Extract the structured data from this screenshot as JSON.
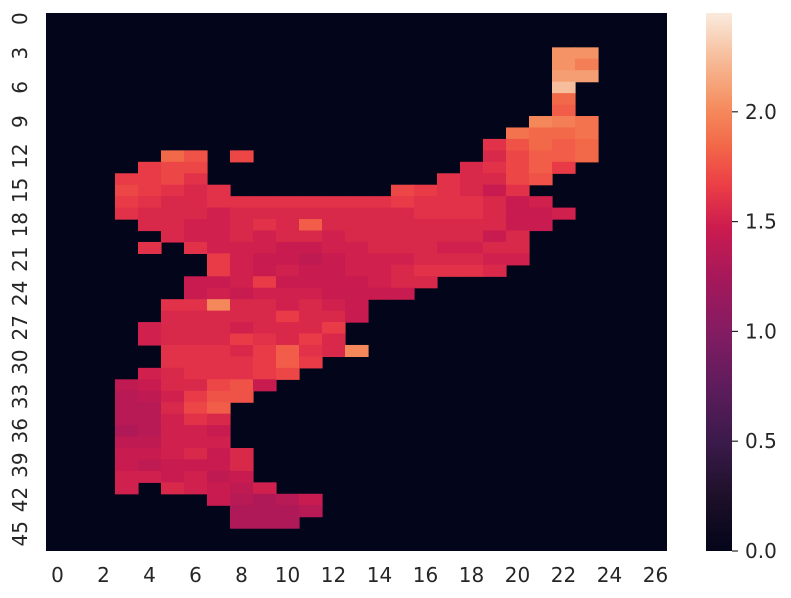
{
  "chart_data": {
    "type": "heatmap",
    "title": "",
    "xlabel": "",
    "ylabel": "",
    "n_cols": 27,
    "n_rows": 47,
    "x_tick_labels": [
      "0",
      "2",
      "4",
      "6",
      "8",
      "10",
      "12",
      "14",
      "16",
      "18",
      "20",
      "22",
      "24",
      "26"
    ],
    "y_tick_labels": [
      "0",
      "3",
      "6",
      "9",
      "12",
      "15",
      "18",
      "21",
      "24",
      "27",
      "30",
      "33",
      "36",
      "39",
      "42",
      "45"
    ],
    "colorbar": {
      "range": [
        0.0,
        2.45
      ],
      "ticks": [
        "0.0",
        "0.5",
        "1.0",
        "1.5",
        "2.0"
      ],
      "colormap": "rocket"
    },
    "background_value": 0.0,
    "cells_note": "rows listed as [row_index, first_col, [values for consecutive columns]]; unlisted cells = 0.0",
    "cells": [
      [
        3,
        22,
        [
          2.05,
          2.05
        ]
      ],
      [
        4,
        22,
        [
          2.05,
          1.95
        ]
      ],
      [
        5,
        22,
        [
          2.1,
          2.1
        ]
      ],
      [
        6,
        22,
        [
          2.25
        ]
      ],
      [
        7,
        22,
        [
          1.85
        ]
      ],
      [
        8,
        22,
        [
          1.8
        ]
      ],
      [
        9,
        21,
        [
          2.0,
          1.95,
          1.9
        ]
      ],
      [
        10,
        20,
        [
          1.9,
          1.85,
          1.85,
          1.9
        ]
      ],
      [
        11,
        19,
        [
          1.6,
          1.75,
          1.85,
          1.8,
          1.85
        ]
      ],
      [
        12,
        5,
        [
          1.85,
          1.75
        ]
      ],
      [
        12,
        7,
        [
          0.0,
          1.7
        ]
      ],
      [
        12,
        19,
        [
          1.55,
          1.7,
          1.8,
          1.8,
          1.85
        ]
      ],
      [
        13,
        4,
        [
          1.65,
          1.7,
          1.7
        ]
      ],
      [
        13,
        18,
        [
          1.55,
          1.6,
          1.7,
          1.8,
          1.65
        ]
      ],
      [
        14,
        3,
        [
          1.65,
          1.65,
          1.7,
          1.6
        ]
      ],
      [
        14,
        17,
        [
          1.6,
          1.55,
          1.55,
          1.7,
          1.75
        ]
      ],
      [
        15,
        3,
        [
          1.7,
          1.65,
          1.6,
          1.55,
          1.6
        ]
      ],
      [
        15,
        15,
        [
          1.7,
          1.65,
          1.6,
          1.55,
          1.45,
          1.6
        ]
      ],
      [
        16,
        3,
        [
          1.65,
          1.6,
          1.55,
          1.55,
          1.6,
          1.6,
          1.6,
          1.6,
          1.6,
          1.6,
          1.6,
          1.6,
          1.65,
          1.6,
          1.6,
          1.6,
          1.55,
          1.45,
          1.5
        ]
      ],
      [
        17,
        3,
        [
          1.6,
          1.55,
          1.55,
          1.55,
          1.5,
          1.55,
          1.55,
          1.55,
          1.55,
          1.55,
          1.55,
          1.55,
          1.55,
          1.6,
          1.6,
          1.6,
          1.55,
          1.45,
          1.45,
          1.5
        ]
      ],
      [
        18,
        4,
        [
          1.55,
          1.55,
          1.5,
          1.5,
          1.55,
          1.6,
          1.55,
          1.8,
          1.55,
          1.55,
          1.55,
          1.55,
          1.55,
          1.55,
          1.55,
          1.55,
          1.45,
          1.45
        ]
      ],
      [
        19,
        5,
        [
          1.55,
          1.5,
          1.5,
          1.55,
          1.5,
          1.55,
          1.55,
          1.5,
          1.55,
          1.55,
          1.55,
          1.55,
          1.55,
          1.55,
          1.45,
          1.55
        ]
      ],
      [
        20,
        4,
        [
          1.6,
          0.0,
          1.6,
          1.5,
          1.5,
          1.5,
          1.45,
          1.45,
          1.5,
          1.5,
          1.55,
          1.55,
          1.55,
          1.5,
          1.5,
          1.55,
          1.55
        ]
      ],
      [
        21,
        7,
        [
          1.65,
          1.5,
          1.45,
          1.45,
          1.4,
          1.45,
          1.5,
          1.5,
          1.5,
          1.55,
          1.55,
          1.55,
          1.5,
          1.5
        ]
      ],
      [
        22,
        7,
        [
          1.65,
          1.5,
          1.45,
          1.5,
          1.45,
          1.45,
          1.5,
          1.5,
          1.55,
          1.6,
          1.6,
          1.6,
          1.55
        ]
      ],
      [
        23,
        6,
        [
          1.45,
          1.45,
          1.5,
          1.65,
          1.45,
          1.45,
          1.45,
          1.45,
          1.5,
          1.55,
          1.55
        ]
      ],
      [
        24,
        6,
        [
          1.45,
          1.5,
          1.45,
          1.5,
          1.5,
          1.5,
          1.45,
          1.45,
          1.45,
          1.45
        ]
      ],
      [
        25,
        5,
        [
          1.6,
          1.6,
          2.0,
          1.55,
          1.55,
          1.5,
          1.55,
          1.5,
          1.45
        ]
      ],
      [
        26,
        5,
        [
          1.55,
          1.55,
          1.55,
          1.55,
          1.55,
          1.65,
          1.55,
          1.55,
          1.45
        ]
      ],
      [
        27,
        4,
        [
          1.5,
          1.55,
          1.55,
          1.55,
          1.5,
          1.55,
          1.55,
          1.55,
          1.65
        ]
      ],
      [
        28,
        4,
        [
          1.5,
          1.55,
          1.55,
          1.55,
          1.65,
          1.6,
          1.55,
          1.65,
          1.55
        ]
      ],
      [
        29,
        5,
        [
          1.6,
          1.6,
          1.6,
          1.55,
          1.65,
          1.8,
          1.6,
          1.55,
          2.0
        ]
      ],
      [
        30,
        5,
        [
          1.6,
          1.6,
          1.6,
          1.6,
          1.65,
          1.8,
          1.65
        ]
      ],
      [
        31,
        4,
        [
          1.5,
          1.55,
          1.6,
          1.6,
          1.6,
          1.65,
          1.7
        ]
      ],
      [
        32,
        3,
        [
          1.4,
          1.45,
          1.55,
          1.55,
          1.7,
          1.75,
          1.45
        ]
      ],
      [
        33,
        3,
        [
          1.35,
          1.4,
          1.5,
          1.65,
          1.75,
          1.75
        ]
      ],
      [
        34,
        3,
        [
          1.35,
          1.35,
          1.55,
          1.7,
          1.8
        ]
      ],
      [
        35,
        3,
        [
          1.35,
          1.35,
          1.5,
          1.6,
          1.55
        ]
      ],
      [
        36,
        3,
        [
          1.3,
          1.35,
          1.5,
          1.5,
          1.45
        ]
      ],
      [
        37,
        3,
        [
          1.4,
          1.4,
          1.5,
          1.5,
          1.5
        ]
      ],
      [
        38,
        3,
        [
          1.45,
          1.45,
          1.5,
          1.55,
          1.45,
          1.55
        ]
      ],
      [
        39,
        3,
        [
          1.45,
          1.4,
          1.45,
          1.45,
          1.45,
          1.55
        ]
      ],
      [
        40,
        3,
        [
          1.5,
          1.5,
          1.45,
          1.5,
          1.4,
          1.45
        ]
      ],
      [
        41,
        3,
        [
          1.5,
          0.0,
          1.55,
          1.5,
          1.45,
          1.4,
          1.5
        ]
      ],
      [
        42,
        7,
        [
          1.45,
          1.35,
          1.3,
          1.35,
          1.45
        ]
      ],
      [
        43,
        8,
        [
          1.3,
          1.3,
          1.3,
          1.35
        ]
      ],
      [
        44,
        8,
        [
          1.3,
          1.3,
          1.3
        ]
      ]
    ]
  }
}
